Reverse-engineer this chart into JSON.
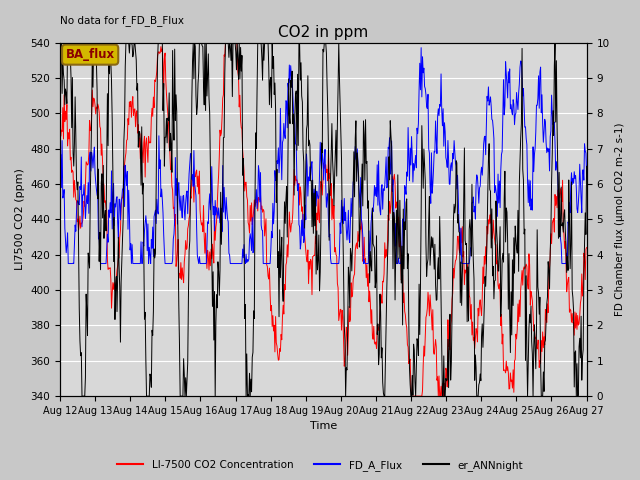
{
  "title": "CO2 in ppm",
  "title_fontsize": 11,
  "top_left_text": "No data for f_FD_B_Flux",
  "ylabel_left": "LI7500 CO2 (ppm)",
  "ylabel_right": "FD Chamber flux (μmol CO2 m-2 s-1)",
  "xlabel": "Time",
  "ylim_left": [
    340,
    540
  ],
  "ylim_right": [
    0.0,
    10.0
  ],
  "yticks_left": [
    340,
    360,
    380,
    400,
    420,
    440,
    460,
    480,
    500,
    520,
    540
  ],
  "yticks_right": [
    0.0,
    1.0,
    2.0,
    3.0,
    4.0,
    5.0,
    6.0,
    7.0,
    8.0,
    9.0,
    10.0
  ],
  "xtick_labels": [
    "Aug 12",
    "Aug 13",
    "Aug 14",
    "Aug 15",
    "Aug 16",
    "Aug 17",
    "Aug 18",
    "Aug 19",
    "Aug 20",
    "Aug 21",
    "Aug 22",
    "Aug 23",
    "Aug 24",
    "Aug 25",
    "Aug 26",
    "Aug 27"
  ],
  "bg_color": "#c8c8c8",
  "plot_bg_color": "#d8d8d8",
  "legend_entries": [
    "LI-7500 CO2 Concentration",
    "FD_A_Flux",
    "er_ANNnight"
  ],
  "legend_colors": [
    "red",
    "blue",
    "black"
  ],
  "ba_flux_box_facecolor": "#d4b800",
  "ba_flux_box_edgecolor": "#8b6914",
  "ba_flux_text": "BA_flux",
  "ba_flux_text_color": "#8b0000"
}
